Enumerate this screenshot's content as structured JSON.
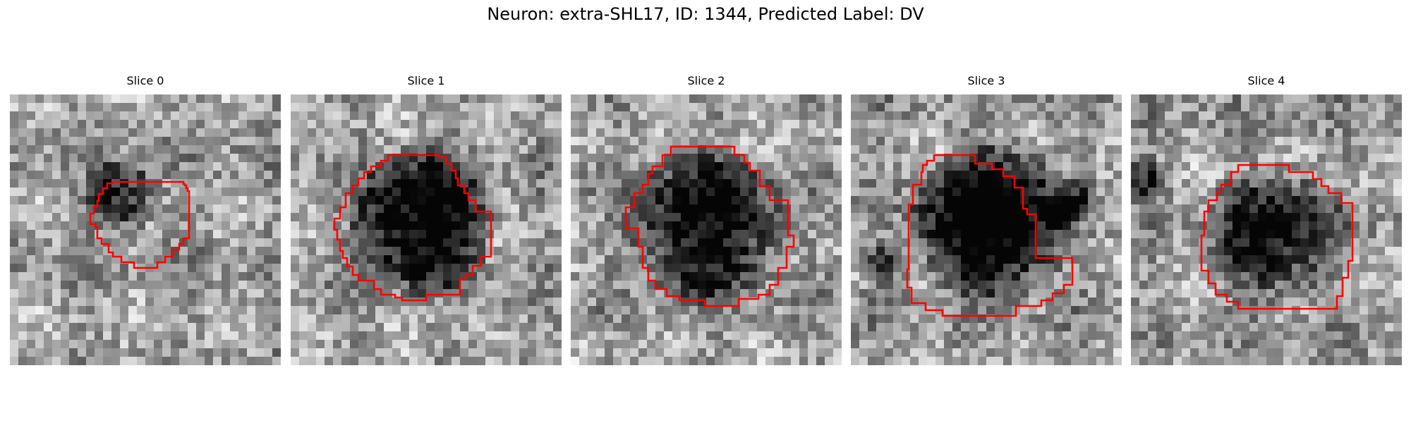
{
  "figure": {
    "title": "Neuron: extra-SHL17, ID: 1344, Predicted Label: DV"
  },
  "panels": [
    {
      "title": "Slice 0"
    },
    {
      "title": "Slice 1"
    },
    {
      "title": "Slice 2"
    },
    {
      "title": "Slice 3"
    },
    {
      "title": "Slice 4"
    }
  ],
  "colors": {
    "contour": "#ff0000",
    "colormap": "grayscale"
  }
}
